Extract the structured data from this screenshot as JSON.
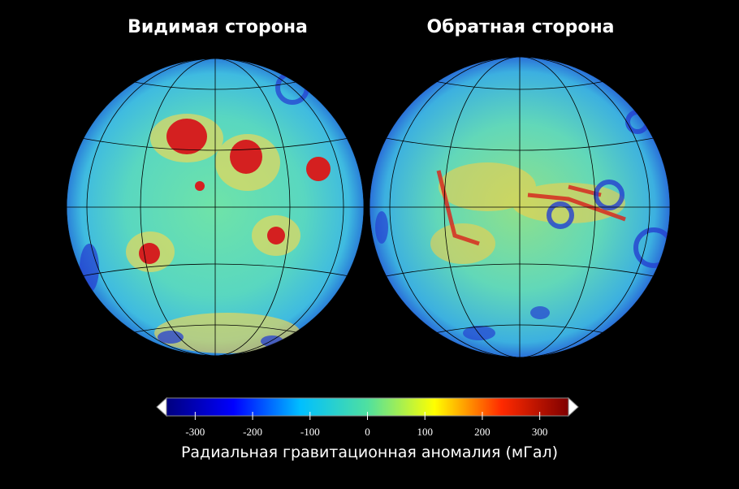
{
  "titles": [
    "Видимая сторона",
    "Обратная сторона"
  ],
  "colorbar": {
    "lim": [
      -350,
      350
    ],
    "ticks": [
      -300,
      -200,
      -100,
      0,
      100,
      200,
      300
    ],
    "colormap": [
      "#00007f",
      "#0000ff",
      "#00bfff",
      "#4fe0a0",
      "#ffff00",
      "#ff2a00",
      "#7f0000"
    ],
    "label": "Радиальная гравитационная аномалия (мГал)"
  }
}
